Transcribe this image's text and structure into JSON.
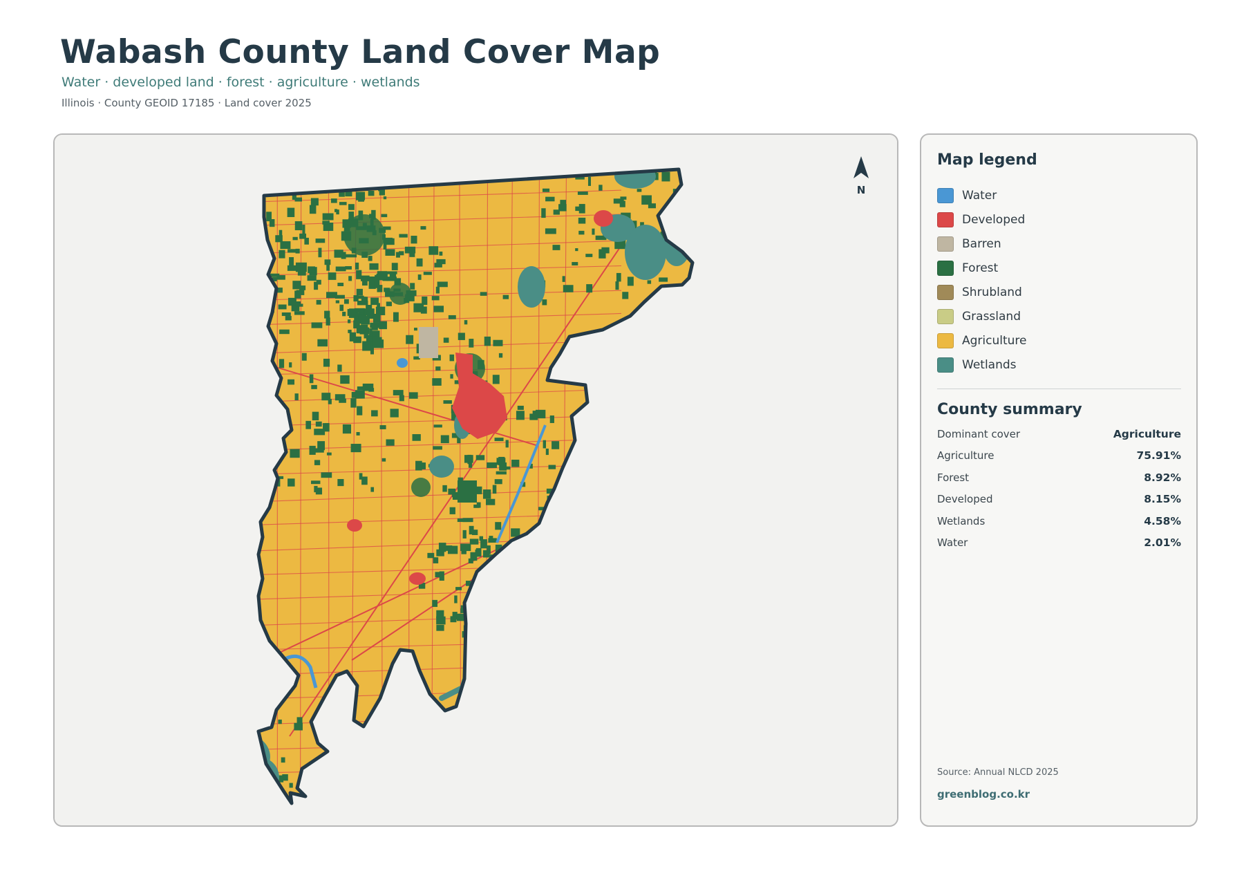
{
  "header": {
    "title": "Wabash County Land Cover Map",
    "subtitle": "Water · developed land · forest · agriculture · wetlands",
    "meta": "Illinois · County GEOID 17185 · Land cover 2025"
  },
  "map": {
    "north_label": "N",
    "colors": {
      "water": "#4a97d4",
      "developed": "#dc4848",
      "barren": "#bfb6a2",
      "forest": "#2b7043",
      "shrubland": "#a08a58",
      "grassland": "#c9cc86",
      "agriculture": "#ecb942",
      "wetlands": "#4a8e86",
      "outline": "#253a47",
      "background": "#f2f2f0"
    }
  },
  "legend": {
    "title": "Map legend",
    "items": [
      {
        "label": "Water",
        "color": "#4a97d4"
      },
      {
        "label": "Developed",
        "color": "#dc4848"
      },
      {
        "label": "Barren",
        "color": "#bfb6a2"
      },
      {
        "label": "Forest",
        "color": "#2b7043"
      },
      {
        "label": "Shrubland",
        "color": "#a08a58"
      },
      {
        "label": "Grassland",
        "color": "#c9cc86"
      },
      {
        "label": "Agriculture",
        "color": "#ecb942"
      },
      {
        "label": "Wetlands",
        "color": "#4a8e86"
      }
    ]
  },
  "summary": {
    "title": "County summary",
    "rows": [
      {
        "label": "Dominant cover",
        "value": "Agriculture"
      },
      {
        "label": "Agriculture",
        "value": "75.91%"
      },
      {
        "label": "Forest",
        "value": "8.92%"
      },
      {
        "label": "Developed",
        "value": "8.15%"
      },
      {
        "label": "Wetlands",
        "value": "4.58%"
      },
      {
        "label": "Water",
        "value": "2.01%"
      }
    ]
  },
  "footer": {
    "source": "Source: Annual NLCD 2025",
    "credit": "greenblog.co.kr"
  }
}
